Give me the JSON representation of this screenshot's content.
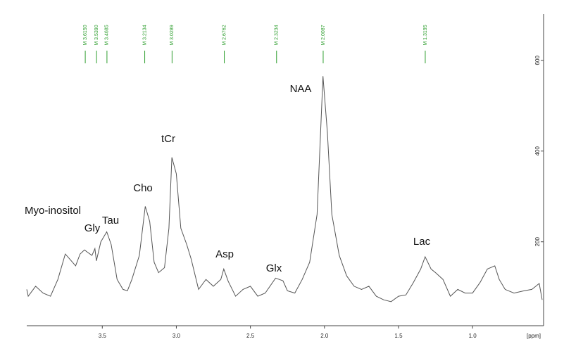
{
  "chart_data": {
    "type": "line",
    "x_label": "[ppm]",
    "x": [
      4.01,
      4.0,
      3.95,
      3.9,
      3.85,
      3.8,
      3.75,
      3.72,
      3.68,
      3.65,
      3.62,
      3.6,
      3.57,
      3.55,
      3.54,
      3.51,
      3.47,
      3.44,
      3.4,
      3.36,
      3.33,
      3.3,
      3.25,
      3.21,
      3.18,
      3.15,
      3.12,
      3.08,
      3.05,
      3.03,
      3.0,
      2.97,
      2.93,
      2.9,
      2.85,
      2.8,
      2.75,
      2.7,
      2.68,
      2.65,
      2.6,
      2.55,
      2.5,
      2.45,
      2.4,
      2.33,
      2.28,
      2.25,
      2.2,
      2.15,
      2.1,
      2.05,
      2.01,
      1.98,
      1.95,
      1.9,
      1.85,
      1.8,
      1.75,
      1.7,
      1.65,
      1.6,
      1.55,
      1.5,
      1.45,
      1.4,
      1.35,
      1.32,
      1.28,
      1.25,
      1.2,
      1.15,
      1.1,
      1.05,
      1.0,
      0.95,
      0.9,
      0.85,
      0.82,
      0.78,
      0.72,
      0.65,
      0.6,
      0.55,
      0.53
    ],
    "series": [
      {
        "color": "#555555",
        "values": [
          95,
          80,
          102,
          87,
          80,
          117,
          173,
          162,
          147,
          173,
          182,
          177,
          170,
          185,
          158,
          200,
          222,
          194,
          117,
          95,
          92,
          117,
          170,
          278,
          245,
          155,
          132,
          143,
          230,
          386,
          350,
          230,
          194,
          162,
          95,
          117,
          102,
          117,
          140,
          113,
          80,
          95,
          102,
          80,
          87,
          120,
          114,
          92,
          87,
          117,
          155,
          260,
          565,
          440,
          260,
          170,
          125,
          102,
          95,
          102,
          80,
          72,
          68,
          80,
          83,
          110,
          140,
          167,
          140,
          132,
          117,
          80,
          95,
          87,
          87,
          110,
          140,
          147,
          117,
          95,
          87,
          92,
          95,
          108,
          72
        ]
      }
    ],
    "xlim": [
      4.01,
      0.53
    ],
    "ylim": [
      15,
      702
    ],
    "xticks": [
      3.5,
      {
        "value": 3,
        "label": "3.0"
      },
      2.5,
      {
        "value": 2,
        "label": "2.0"
      },
      1.5,
      {
        "value": 1,
        "label": "1.0"
      }
    ],
    "yticks": [
      200,
      400,
      600
    ],
    "markers": {
      "color": "#2e9e2e",
      "items": [
        {
          "value": 3.615,
          "label": "M 3.6150"
        },
        {
          "value": 3.539,
          "label": "M 3.5390"
        },
        {
          "value": 3.4685,
          "label": "M 3.4685"
        },
        {
          "value": 3.2134,
          "label": "M 3.2134"
        },
        {
          "value": 3.0289,
          "label": "M 3.0289"
        },
        {
          "value": 2.6762,
          "label": "M 2.6762"
        },
        {
          "value": 2.3234,
          "label": "M 2.3234"
        },
        {
          "value": 2.0087,
          "label": "M 2.0087"
        },
        {
          "value": 1.3195,
          "label": "M 1.3195"
        }
      ]
    },
    "annotations": [
      "Myo-inositol",
      "Gly",
      "Tau",
      "Cho",
      "tCr",
      "Asp",
      "Glx",
      "NAA",
      "Lac"
    ]
  }
}
